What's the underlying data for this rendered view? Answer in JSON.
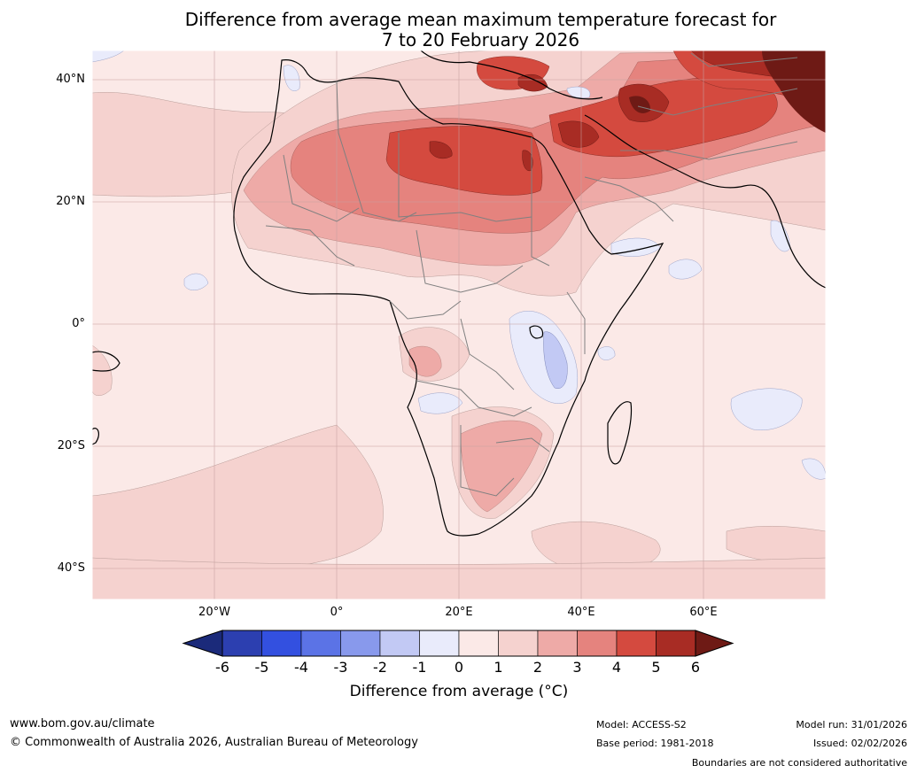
{
  "title": {
    "line1": "Difference from average mean maximum temperature forecast for",
    "line2": "7 to 20 February 2026"
  },
  "axes": {
    "lat_labels": [
      "40°N",
      "20°N",
      "0°",
      "20°S",
      "40°S"
    ],
    "lon_labels": [
      "20°W",
      "0°",
      "20°E",
      "40°E",
      "60°E"
    ]
  },
  "legend": {
    "ticks": [
      "-6",
      "-5",
      "-4",
      "-3",
      "-2",
      "-1",
      "0",
      "1",
      "2",
      "3",
      "4",
      "5",
      "6"
    ],
    "label": "Difference from average (°C)",
    "colors": [
      "#1b2a7a",
      "#2c3fb0",
      "#3350e0",
      "#5b73e6",
      "#8899ec",
      "#c2c9f4",
      "#e9ebfb",
      "#fbe9e7",
      "#f5d2cf",
      "#eeaaa7",
      "#e5837e",
      "#d44a3f",
      "#a82c24",
      "#6e1a15"
    ]
  },
  "footer": {
    "website": "www.bom.gov.au/climate",
    "copyright": "© Commonwealth of Australia 2026, Australian Bureau of Meteorology",
    "model": "Model: ACCESS-S2",
    "base_period": "Base period: 1981-2018",
    "model_run": "Model run: 31/01/2026",
    "issued": "Issued: 02/02/2026",
    "disclaimer": "Boundaries are not considered authoritative"
  }
}
